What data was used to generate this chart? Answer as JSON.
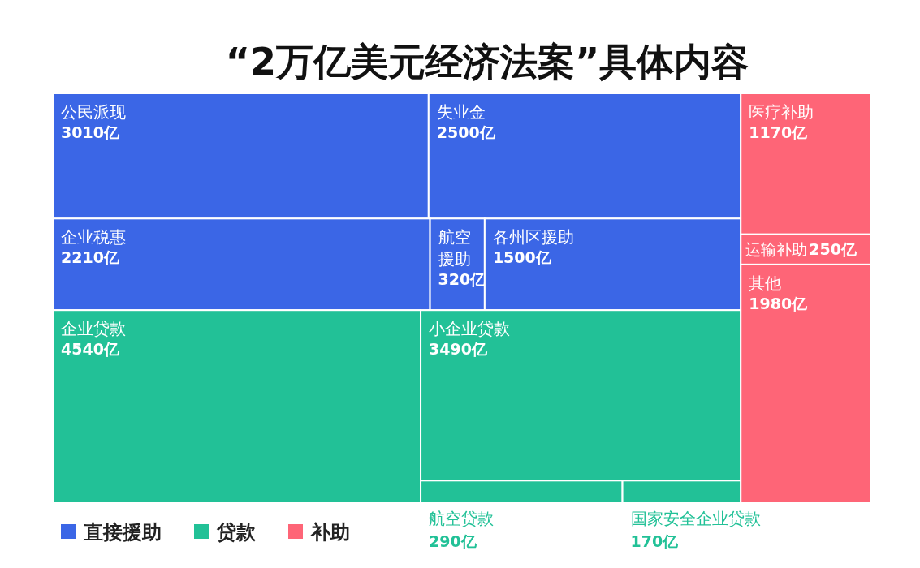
{
  "chart_data": {
    "type": "other",
    "title": "“2万亿美元经济法案”具体内容",
    "legend": "bottom left",
    "categories": [
      "公民派现",
      "失业金",
      "企业税惠",
      "航空援助",
      "各州区援助",
      "企业贷款",
      "小企业贷款",
      "航空贷款",
      "国家安全企业贷款",
      "医疗补助",
      "运输补助",
      "其他"
    ],
    "series": [
      {
        "name": "直接援助",
        "color": "#3b66e6",
        "values": [
          3010,
          2500,
          2210,
          320,
          1500,
          null,
          null,
          null,
          null,
          null,
          null,
          null
        ],
        "value_labels": [
          "3010亿",
          "2500亿",
          "2210亿",
          "320亿",
          "1500亿",
          null,
          null,
          null,
          null,
          null,
          null,
          null
        ]
      },
      {
        "name": "贷款",
        "color": "#22c197",
        "values": [
          null,
          null,
          null,
          null,
          null,
          4540,
          3490,
          290,
          170,
          null,
          null,
          null
        ],
        "value_labels": [
          null,
          null,
          null,
          null,
          null,
          "4540亿",
          "3490亿",
          "290亿",
          "170亿",
          null,
          null,
          null
        ]
      },
      {
        "name": "补助",
        "color": "#fe6577",
        "values": [
          null,
          null,
          null,
          null,
          null,
          null,
          null,
          null,
          null,
          1170,
          250,
          1980
        ],
        "value_labels": [
          null,
          null,
          null,
          null,
          null,
          null,
          null,
          null,
          null,
          "1170亿",
          "250亿",
          "1980亿"
        ]
      }
    ]
  }
}
